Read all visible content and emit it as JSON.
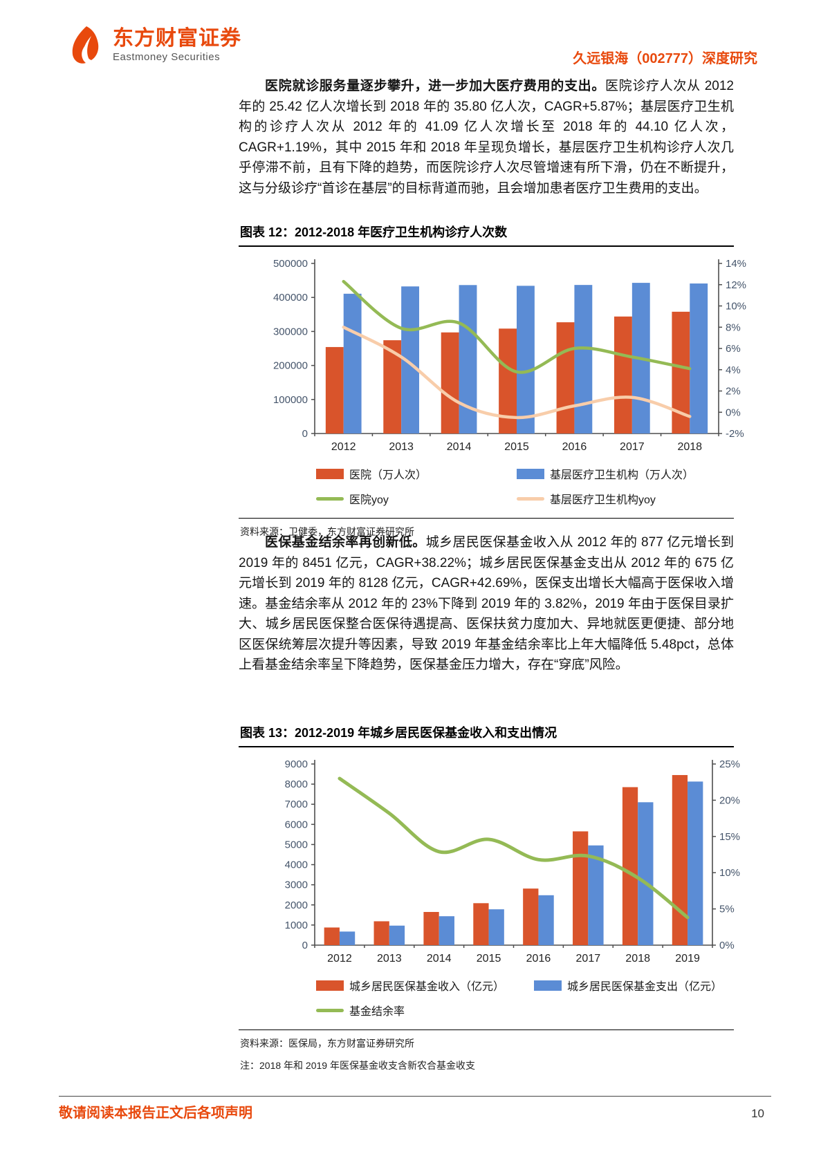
{
  "header": {
    "brand_cn": "东方财富证券",
    "brand_en": "Eastmoney Securities",
    "doc_title": "久远银海（002777）深度研究"
  },
  "paragraphs": [
    {
      "lead": "医院就诊服务量逐步攀升，进一步加大医疗费用的支出。",
      "body": "医院诊疗人次从 2012 年的 25.42 亿人次增长到 2018 年的 35.80 亿人次，CAGR+5.87%；基层医疗卫生机构的诊疗人次从 2012 年的 41.09 亿人次增长至 2018 年的 44.10 亿人次，CAGR+1.19%，其中 2015 年和 2018 年呈现负增长，基层医疗卫生机构诊疗人次几乎停滞不前，且有下降的趋势，而医院诊疗人次尽管增速有所下滑，仍在不断提升，这与分级诊疗“首诊在基层”的目标背道而驰，且会增加患者医疗卫生费用的支出。"
    },
    {
      "lead": "医保基金结余率再创新低。",
      "body": "城乡居民医保基金收入从 2012 年的 877 亿元增长到 2019 年的 8451 亿元，CAGR+38.22%；城乡居民医保基金支出从 2012 年的 675 亿元增长到 2019 年的 8128 亿元，CAGR+42.69%，医保支出增长大幅高于医保收入增速。基金结余率从 2012 年的 23%下降到 2019 年的 3.82%，2019 年由于医保目录扩大、城乡居民医保整合医保待遇提高、医保扶贫力度加大、异地就医更便捷、部分地区医保统筹层次提升等因素，导致 2019 年基金结余率比上年大幅降低 5.48pct，总体上看基金结余率呈下降趋势，医保基金压力增大，存在“穿底”风险。"
    }
  ],
  "figures": [
    {
      "title": "图表 12：2012-2018 年医疗卫生机构诊疗人次数",
      "source": "资料来源：卫健委，东方财富证券研究所",
      "note": ""
    },
    {
      "title": "图表 13：2012-2019 年城乡居民医保基金收入和支出情况",
      "source": "资料来源：医保局，东方财富证券研究所",
      "note": "注：2018 年和 2019 年医保基金收支含新农合基金收支"
    }
  ],
  "footer": {
    "disclaimer": "敬请阅读本报告正文后各项声明",
    "page_number": "10"
  },
  "colors": {
    "accent_orange": "#e8490d",
    "bar_orange": "#d9542b",
    "bar_blue": "#5b8cd5",
    "line_green": "#94ba55",
    "line_peach": "#f8cdaa",
    "tick_label": "#44546a",
    "axis": "#4d4d4d"
  },
  "chart_data": [
    {
      "type": "bar",
      "subtype": "combo-bar-line-dual-axis",
      "title": "2012-2018 年医疗卫生机构诊疗人次数",
      "categories": [
        "2012",
        "2013",
        "2014",
        "2015",
        "2016",
        "2017",
        "2018"
      ],
      "bar_series": [
        {
          "name": "医院（万人次）",
          "color": "#d9542b",
          "axis": "left",
          "values": [
            254200,
            274200,
            297200,
            308400,
            327000,
            343900,
            358000
          ]
        },
        {
          "name": "基层医疗卫生机构（万人次）",
          "color": "#5b8cd5",
          "axis": "left",
          "values": [
            410900,
            432400,
            436400,
            434200,
            436700,
            442900,
            441000
          ]
        }
      ],
      "line_series": [
        {
          "name": "医院yoy",
          "color": "#94ba55",
          "axis": "right",
          "values": [
            12.3,
            7.9,
            8.4,
            3.8,
            6.0,
            5.2,
            4.1
          ]
        },
        {
          "name": "基层医疗卫生机构yoy",
          "color": "#f8cdaa",
          "axis": "right",
          "values": [
            8.0,
            5.2,
            0.9,
            -0.5,
            0.6,
            1.4,
            -0.4
          ]
        }
      ],
      "left_axis": {
        "min": 0,
        "max": 500000,
        "step": 100000,
        "suffix": ""
      },
      "right_axis": {
        "min": -2,
        "max": 14,
        "step": 2,
        "suffix": "%"
      },
      "grid": false,
      "legend_position": "bottom"
    },
    {
      "type": "bar",
      "subtype": "combo-bar-line-dual-axis",
      "title": "2012-2019 年城乡居民医保基金收入和支出情况",
      "categories": [
        "2012",
        "2013",
        "2014",
        "2015",
        "2016",
        "2017",
        "2018",
        "2019"
      ],
      "bar_series": [
        {
          "name": "城乡居民医保基金收入（亿元）",
          "color": "#d9542b",
          "axis": "left",
          "values": [
            877,
            1186,
            1649,
            2085,
            2811,
            5653,
            7850,
            8451
          ]
        },
        {
          "name": "城乡居民医保基金支出（亿元）",
          "color": "#5b8cd5",
          "axis": "left",
          "values": [
            675,
            970,
            1437,
            1781,
            2480,
            4955,
            7100,
            8128
          ]
        }
      ],
      "line_series": [
        {
          "name": "基金结余率",
          "color": "#94ba55",
          "axis": "right",
          "values": [
            23.0,
            18.2,
            12.9,
            14.6,
            11.8,
            12.3,
            9.3,
            3.82
          ]
        }
      ],
      "left_axis": {
        "min": 0,
        "max": 9000,
        "step": 1000,
        "suffix": ""
      },
      "right_axis": {
        "min": 0,
        "max": 25,
        "step": 5,
        "suffix": "%"
      },
      "grid": false,
      "legend_position": "bottom"
    }
  ]
}
